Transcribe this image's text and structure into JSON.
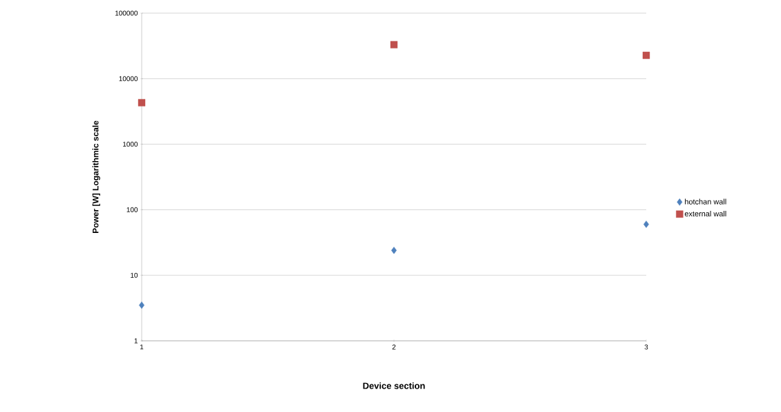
{
  "chart_data": {
    "type": "scatter",
    "xlabel": "Device  section",
    "ylabel": "Power [W] Logarithmic scale",
    "x": [
      1,
      2,
      3
    ],
    "xlim": [
      1,
      3
    ],
    "xticks": [
      1,
      2,
      3
    ],
    "ylim": [
      1,
      100000
    ],
    "yticks": [
      1,
      10,
      100,
      1000,
      10000,
      100000
    ],
    "log": "y",
    "grid": "y",
    "legend": "right",
    "series": [
      {
        "name": "hotchan wall",
        "color": "#4f81bd",
        "marker": "diamond",
        "values": [
          3.5,
          24,
          60
        ]
      },
      {
        "name": "external wall",
        "color": "#c0504d",
        "marker": "square",
        "values": [
          4300,
          33000,
          22700
        ]
      }
    ]
  }
}
